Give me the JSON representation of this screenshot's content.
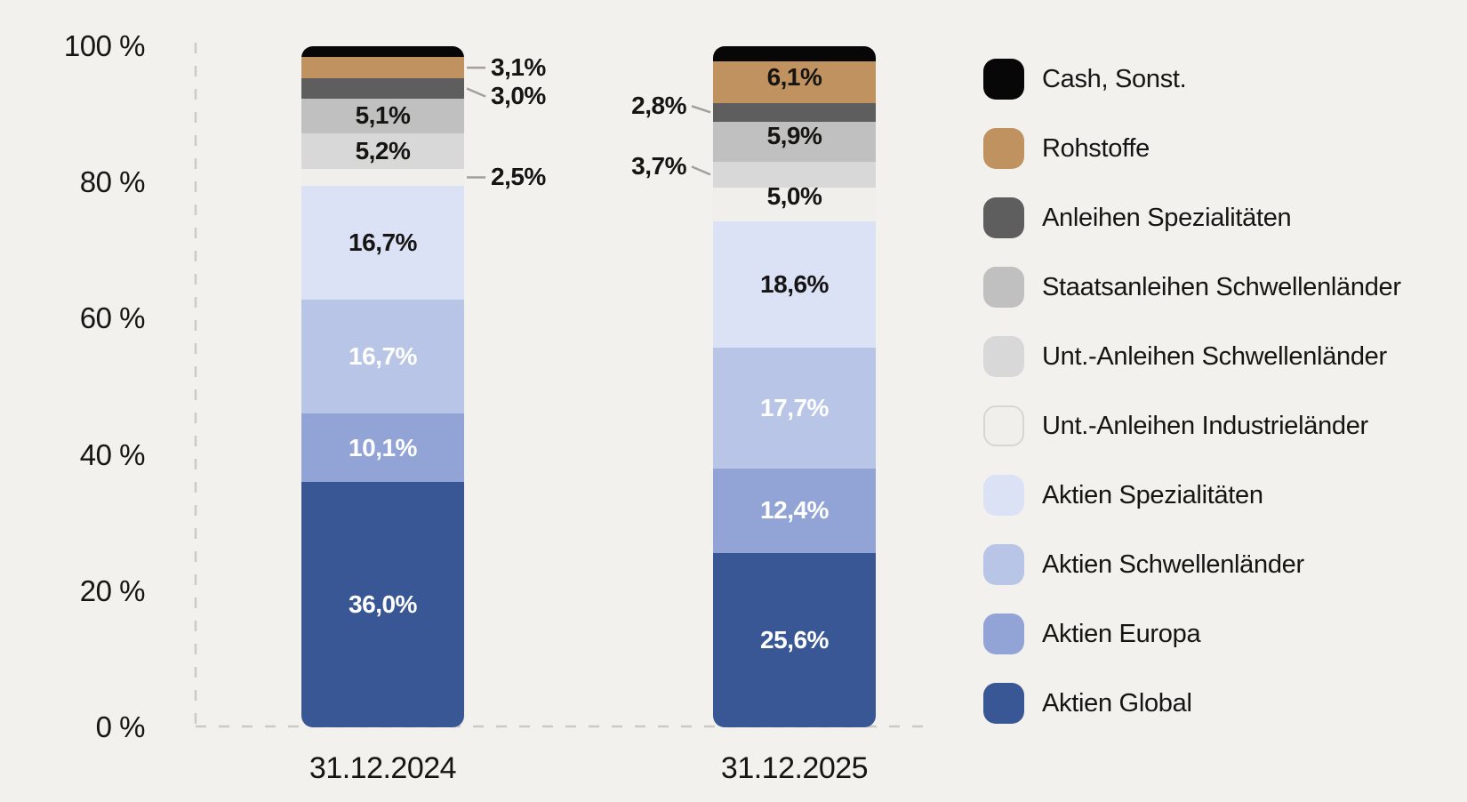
{
  "colors": {
    "background": "#f3f1ee",
    "ink": "#161514",
    "axis_dash": "#cdc9c3",
    "connector": "#a39f98",
    "label_on_dark": "#ffffff"
  },
  "axis": {
    "y_ticks": [
      "100 %",
      "80 %",
      "60 %",
      "40 %",
      "20 %",
      "0 %"
    ],
    "y_values": [
      100,
      80,
      60,
      40,
      20,
      0
    ]
  },
  "chart_data": {
    "type": "bar",
    "stacked": true,
    "unit": "%",
    "title": "",
    "categories": [
      "31.12.2024",
      "31.12.2025"
    ],
    "ylim": [
      0,
      100
    ],
    "grid": false,
    "legend_position": "right",
    "series": [
      {
        "name": "Cash, Sonst.",
        "color": "#070707",
        "values": [
          1.6,
          2.2
        ],
        "display": [
          null,
          null
        ]
      },
      {
        "name": "Rohstoffe",
        "color": "#c09260",
        "values": [
          3.1,
          6.1
        ],
        "display": [
          {
            "text": "3,1%",
            "pos": "right",
            "dy": 0
          },
          {
            "text": "6,1%",
            "pos": "in",
            "ink": "dark",
            "dy": -5
          }
        ]
      },
      {
        "name": "Anleihen Spezialitäten",
        "color": "#5e5e5e",
        "values": [
          3.0,
          2.8
        ],
        "display": [
          {
            "text": "3,0%",
            "pos": "right",
            "dy": 9
          },
          {
            "text": "2,8%",
            "pos": "left",
            "dy": -7
          }
        ]
      },
      {
        "name": "Staatsanleihen Schwellenländer",
        "color": "#c0c0c0",
        "values": [
          5.1,
          5.9
        ],
        "display": [
          {
            "text": "5,1%",
            "pos": "in",
            "ink": "dark",
            "dy": 0
          },
          {
            "text": "5,9%",
            "pos": "in",
            "ink": "dark",
            "dy": -7
          }
        ]
      },
      {
        "name": "Unt.-Anleihen Schwellenländer",
        "color": "#d8d8d8",
        "values": [
          5.2,
          3.7
        ],
        "display": [
          {
            "text": "5,2%",
            "pos": "in",
            "ink": "dark",
            "dy": 0
          },
          {
            "text": "3,7%",
            "pos": "left",
            "dy": -9
          }
        ]
      },
      {
        "name": "Unt.-Anleihen Industrieländer",
        "color": "#f0efec",
        "values": [
          2.5,
          5.0
        ],
        "swatch_border": true,
        "display": [
          {
            "text": "2,5%",
            "pos": "right",
            "dy": 0
          },
          {
            "text": "5,0%",
            "pos": "in",
            "ink": "dark",
            "dy": -9
          }
        ]
      },
      {
        "name": "Aktien Spezialitäten",
        "color": "#dbe2f5",
        "values": [
          16.7,
          18.6
        ],
        "display": [
          {
            "text": "16,7%",
            "pos": "in",
            "ink": "dark",
            "dy": 0
          },
          {
            "text": "18,6%",
            "pos": "in",
            "ink": "dark",
            "dy": 0
          }
        ]
      },
      {
        "name": "Aktien Schwellenländer",
        "color": "#b8c5e7",
        "values": [
          16.7,
          17.7
        ],
        "display": [
          {
            "text": "16,7%",
            "pos": "in",
            "ink": "white",
            "dy": 0
          },
          {
            "text": "17,7%",
            "pos": "in",
            "ink": "white",
            "dy": 0
          }
        ]
      },
      {
        "name": "Aktien Europa",
        "color": "#92a4d6",
        "values": [
          10.1,
          12.4
        ],
        "display": [
          {
            "text": "10,1%",
            "pos": "in",
            "ink": "white",
            "dy": 0
          },
          {
            "text": "12,4%",
            "pos": "in",
            "ink": "white",
            "dy": 0
          }
        ]
      },
      {
        "name": "Aktien Global",
        "color": "#3a5795",
        "values": [
          36.0,
          25.6
        ],
        "display": [
          {
            "text": "36,0%",
            "pos": "in",
            "ink": "white",
            "dy": 0
          },
          {
            "text": "25,6%",
            "pos": "in",
            "ink": "white",
            "dy": 0
          }
        ]
      }
    ]
  }
}
